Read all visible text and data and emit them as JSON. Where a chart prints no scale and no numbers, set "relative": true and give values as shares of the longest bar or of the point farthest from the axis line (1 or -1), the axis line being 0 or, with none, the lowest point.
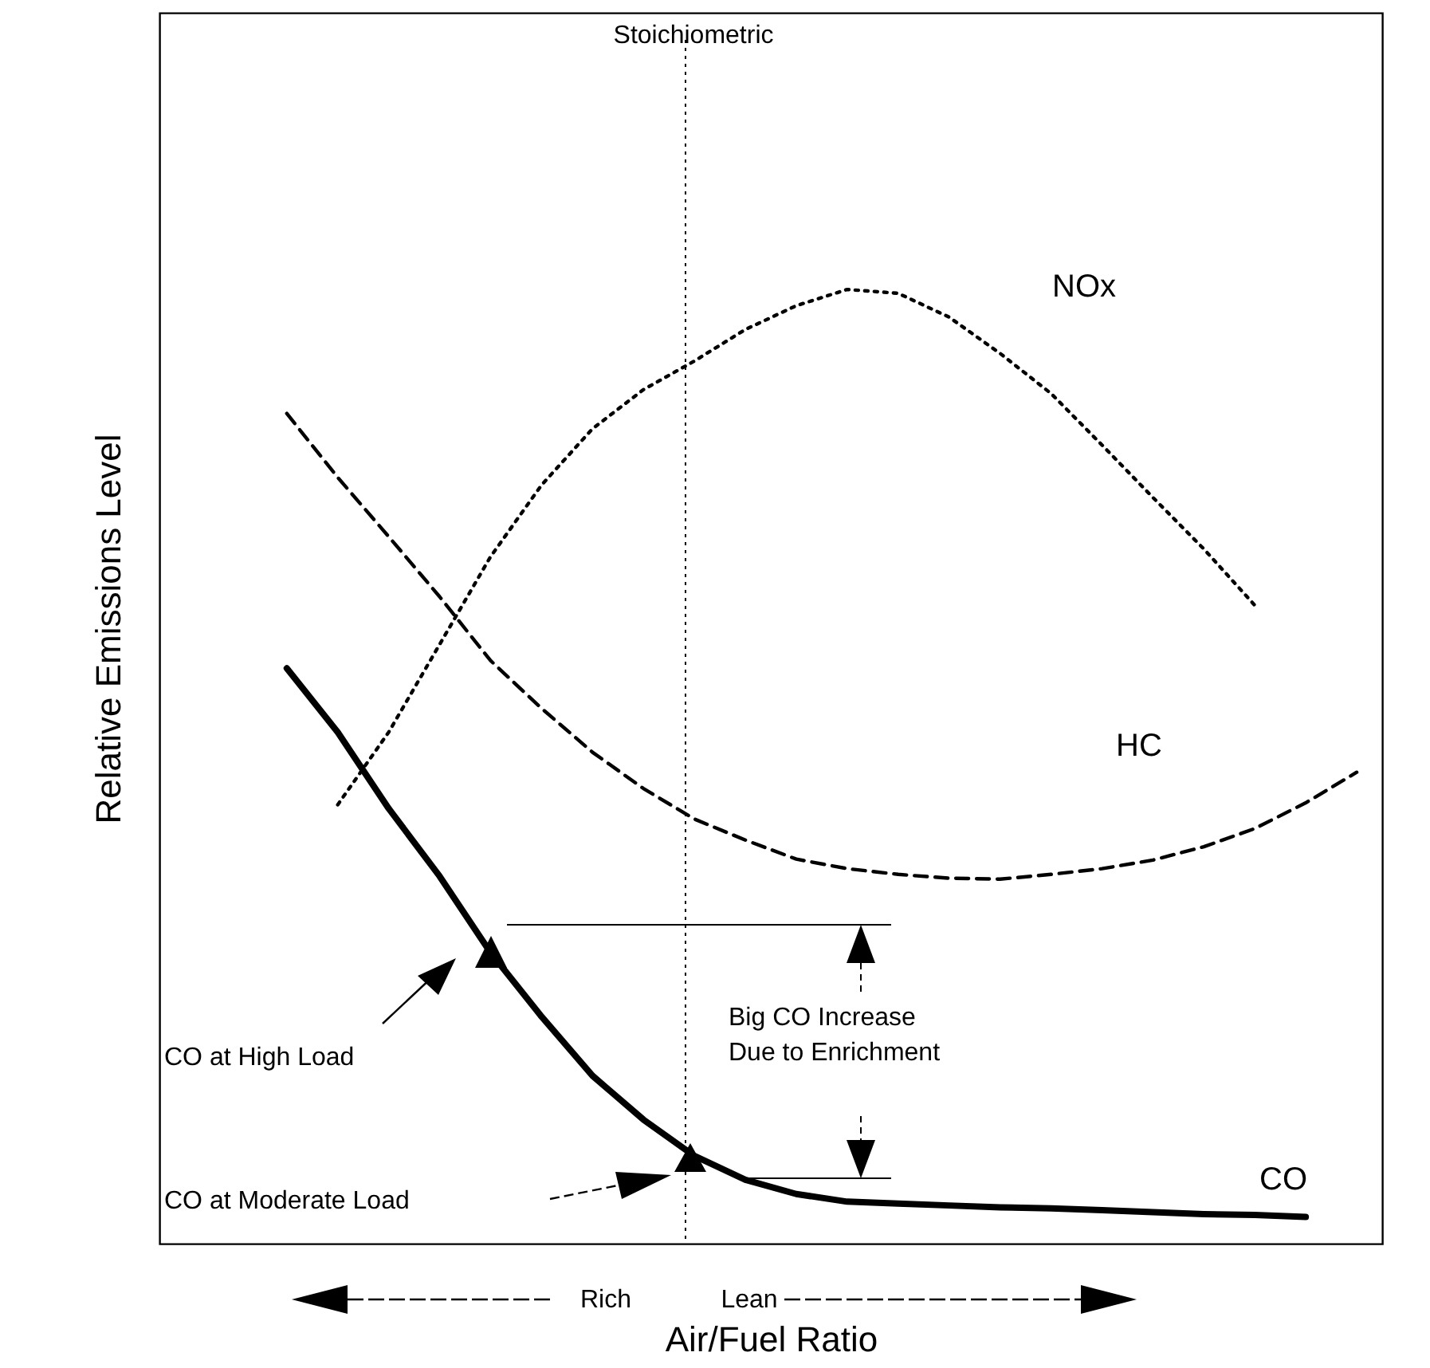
{
  "chart_data": {
    "type": "line",
    "relative": true,
    "xlabel": "Air/Fuel Ratio",
    "ylabel": "Relative Emissions Level",
    "categories": [
      null,
      null,
      null,
      null,
      null,
      null,
      null,
      null,
      null,
      null,
      null,
      null,
      null,
      null,
      null,
      null,
      null,
      null,
      null,
      null,
      null,
      null,
      null,
      null
    ],
    "series": [
      {
        "name": "NOx",
        "color": "#000000",
        "line_style": "dotted",
        "values": [
          null,
          null,
          null,
          0.46,
          0.536,
          0.628,
          0.72,
          0.795,
          0.854,
          0.895,
          0.925,
          0.958,
          0.983,
          1,
          0.996,
          0.971,
          0.933,
          0.891,
          0.837,
          0.782,
          0.728,
          0.669,
          null,
          null
        ]
      },
      {
        "name": "HC",
        "color": "#000000",
        "line_style": "dashed",
        "values": [
          null,
          null,
          0.87,
          0.803,
          0.741,
          0.678,
          0.611,
          0.561,
          0.515,
          0.477,
          0.445,
          0.423,
          0.403,
          0.393,
          0.387,
          0.383,
          0.382,
          0.387,
          0.393,
          0.402,
          0.416,
          0.435,
          0.462,
          0.494
        ]
      },
      {
        "name": "CO",
        "color": "#000000",
        "line_style": "solid",
        "values": [
          null,
          null,
          0.603,
          0.536,
          0.456,
          0.385,
          0.305,
          0.238,
          0.176,
          0.13,
          0.092,
          0.067,
          0.052,
          0.044,
          0.042,
          0.04,
          0.038,
          0.037,
          0.035,
          0.033,
          0.031,
          0.03,
          0.028,
          null
        ]
      }
    ],
    "annotations": [
      "CO at High Load",
      "CO at Moderate Load",
      "Big CO Increase\nDue to Enrichment",
      "Rich",
      "Lean",
      "Stoichiometric"
    ],
    "grid": false
  }
}
